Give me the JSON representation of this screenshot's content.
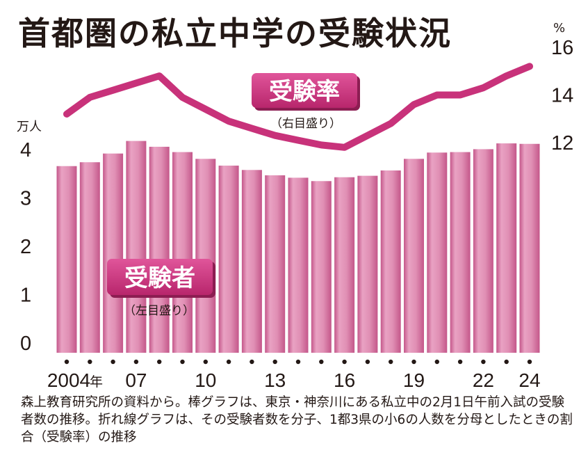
{
  "title": "首都圏の私立中学の受験状況",
  "chart_data": {
    "type": "bar+line",
    "categories": [
      "2004",
      "2005",
      "2006",
      "2007",
      "2008",
      "2009",
      "2010",
      "2011",
      "2012",
      "2013",
      "2014",
      "2015",
      "2016",
      "2017",
      "2018",
      "2019",
      "2020",
      "2021",
      "2022",
      "2023",
      "2024"
    ],
    "x_tick_labels": {
      "2004": "2004",
      "2007": "07",
      "2010": "10",
      "2013": "13",
      "2016": "16",
      "2019": "19",
      "2022": "22",
      "2024": "24"
    },
    "x_label_suffix": "年",
    "bar_series": {
      "name": "受験者",
      "axis": "left",
      "axis_note": "（左目盛り）",
      "values": [
        3.86,
        3.94,
        4.12,
        4.38,
        4.26,
        4.15,
        4.01,
        3.87,
        3.78,
        3.67,
        3.62,
        3.55,
        3.63,
        3.66,
        3.77,
        4.01,
        4.14,
        4.15,
        4.21,
        4.33,
        4.32
      ]
    },
    "line_series": {
      "name": "受験率",
      "axis": "right",
      "axis_note": "（右目盛り）",
      "values": [
        13.2,
        13.9,
        14.2,
        14.5,
        14.8,
        13.9,
        13.4,
        12.9,
        12.6,
        12.3,
        12.1,
        11.9,
        11.8,
        12.3,
        12.8,
        13.6,
        14.0,
        14.0,
        14.3,
        14.8,
        15.2
      ]
    },
    "left_axis": {
      "unit": "万人",
      "ticks": [
        "0",
        "1",
        "2",
        "3",
        "4"
      ],
      "range": [
        0,
        5
      ]
    },
    "right_axis": {
      "unit": "%",
      "ticks": [
        "12",
        "14",
        "16"
      ],
      "range": [
        12,
        16
      ]
    },
    "colors": {
      "bar": "#e08fb4",
      "bar_dark": "#c4578a",
      "line": "#c8327a",
      "badge": "#c8327a"
    }
  },
  "note": "森上教育研究所の資料から。棒グラフは、東京・神奈川にある私立中の2月1日午前入試の受験者数の推移。折れ線グラフは、その受験者数を分子、1都3県の小6の人数を分母としたときの割合（受験率）の推移"
}
